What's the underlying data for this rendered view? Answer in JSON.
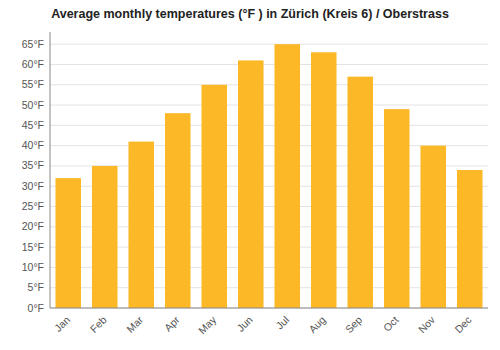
{
  "chart_data": {
    "type": "bar",
    "title": "Average monthly temperatures (°F ) in Zürich (Kreis 6) / Oberstrass",
    "categories": [
      "Jan",
      "Feb",
      "Mar",
      "Apr",
      "May",
      "Jun",
      "Jul",
      "Aug",
      "Sep",
      "Oct",
      "Nov",
      "Dec"
    ],
    "values": [
      32,
      35,
      41,
      48,
      55,
      61,
      65,
      63,
      57,
      49,
      40,
      34
    ],
    "color": "#FDB827",
    "ylim": [
      0,
      68
    ],
    "yticks": [
      {
        "value": 0,
        "label": "0°F"
      },
      {
        "value": 5,
        "label": "5°F"
      },
      {
        "value": 10,
        "label": "10°F"
      },
      {
        "value": 15,
        "label": "15°F"
      },
      {
        "value": 20,
        "label": "20°F"
      },
      {
        "value": 25,
        "label": "25°F"
      },
      {
        "value": 30,
        "label": "30°F"
      },
      {
        "value": 35,
        "label": "35°F"
      },
      {
        "value": 40,
        "label": "40°F"
      },
      {
        "value": 45,
        "label": "45°F"
      },
      {
        "value": 50,
        "label": "50°F"
      },
      {
        "value": 55,
        "label": "55°F"
      },
      {
        "value": 60,
        "label": "60°F"
      },
      {
        "value": 65,
        "label": "65°F"
      }
    ],
    "grid": true
  }
}
